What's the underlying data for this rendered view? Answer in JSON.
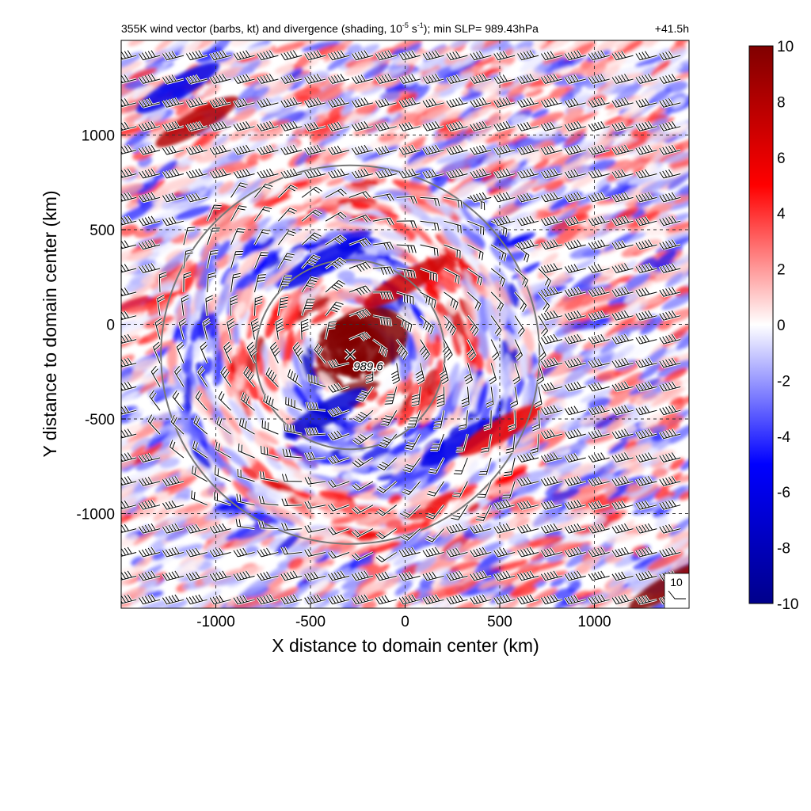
{
  "figure": {
    "title_pre": "355K wind vector (barbs, kt) and divergence (shading, 10",
    "title_exp1": "-5",
    "title_mid": " s",
    "title_exp2": "-1",
    "title_post": "); min SLP= 989.43hPa",
    "forecast_time": "+41.5h",
    "ref_barb_label": "10"
  },
  "chart_data": {
    "type": "heatmap",
    "title": "355K wind vector (barbs, kt) and divergence (shading, 10^-5 s^-1); min SLP= 989.43hPa",
    "subtitle": "+41.5h",
    "xlabel": "X distance to domain center (km)",
    "ylabel": "Y distance to domain center (km)",
    "xlim": [
      -1500,
      1500
    ],
    "ylim": [
      -1500,
      1500
    ],
    "xticks": [
      -1000,
      -500,
      0,
      500,
      1000
    ],
    "yticks": [
      -1000,
      -500,
      0,
      500,
      1000
    ],
    "grid": true,
    "colorbar": {
      "min": -10,
      "max": 10,
      "ticks": [
        10,
        8,
        6,
        4,
        2,
        0,
        -2,
        -4,
        -6,
        -8,
        -10
      ],
      "colors": [
        "#00008b",
        "#0000ff",
        "#ffffff",
        "#ff0000",
        "#800000"
      ]
    },
    "storm_center": {
      "x": -290,
      "y": -160,
      "label": "989.6"
    },
    "range_rings_km": [
      500,
      1000
    ],
    "features": [
      {
        "kind": "positive-core",
        "x": -200,
        "y": -80,
        "value": 10
      },
      {
        "kind": "positive-band",
        "x": 0,
        "y": 220,
        "value": 7
      },
      {
        "kind": "negative-band",
        "x": -420,
        "y": -470,
        "value": -7
      },
      {
        "kind": "negative-band",
        "x": -450,
        "y": 320,
        "value": -6
      },
      {
        "kind": "negative-band",
        "x": 300,
        "y": -620,
        "value": -6
      },
      {
        "kind": "positive-band",
        "x": 500,
        "y": -560,
        "value": 6
      },
      {
        "kind": "positive-band",
        "x": -1100,
        "y": 1070,
        "value": 8
      },
      {
        "kind": "negative-band",
        "x": -1200,
        "y": 1250,
        "value": -6
      },
      {
        "kind": "positive-band",
        "x": 1400,
        "y": -1380,
        "value": 10
      }
    ]
  }
}
